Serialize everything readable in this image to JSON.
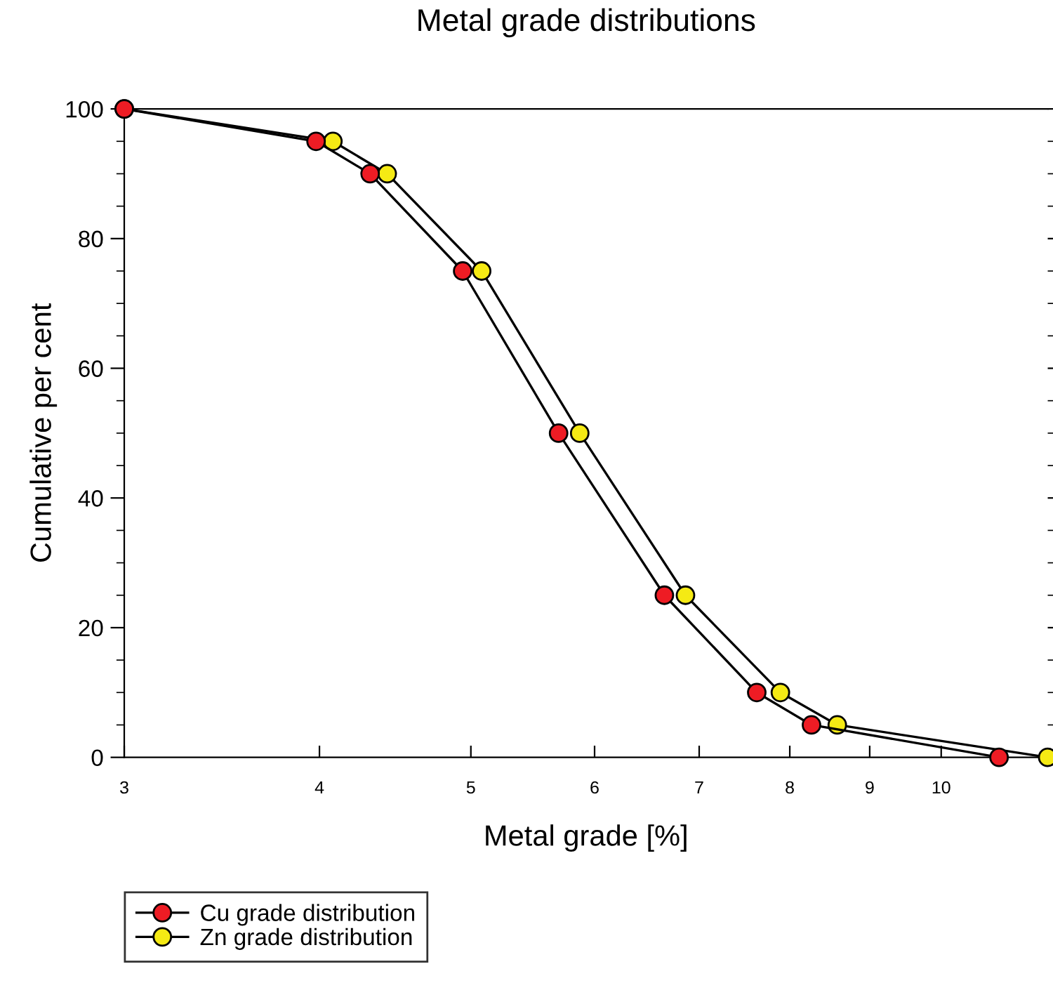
{
  "chart_data": {
    "type": "line",
    "title": "Metal grade distributions",
    "xlabel": "Metal grade [%]",
    "ylabel": "Cumulative per cent",
    "log": "x",
    "xlim": [
      3,
      11.7
    ],
    "xticks": [
      3,
      4,
      5,
      6,
      7,
      8,
      9,
      10
    ],
    "ylim": [
      0,
      100
    ],
    "yticks": [
      0,
      20,
      40,
      60,
      80,
      100
    ],
    "marker": "circle",
    "line_style": "solid",
    "grid": false,
    "legend": "bottom left",
    "series": [
      {
        "name": "Cu grade distribution",
        "color": "#ee1c24",
        "x": [
          3,
          3.98,
          4.31,
          4.94,
          5.69,
          6.65,
          7.62,
          8.26,
          10.89
        ],
        "values": [
          100,
          95,
          90,
          75,
          50,
          25,
          10,
          5,
          0
        ]
      },
      {
        "name": "Zn grade distribution",
        "color": "#f5ea14",
        "x": [
          3,
          4.08,
          4.42,
          5.08,
          5.87,
          6.86,
          7.89,
          8.58,
          11.7
        ],
        "values": [
          100,
          95,
          90,
          75,
          50,
          25,
          10,
          5,
          0
        ]
      }
    ]
  }
}
